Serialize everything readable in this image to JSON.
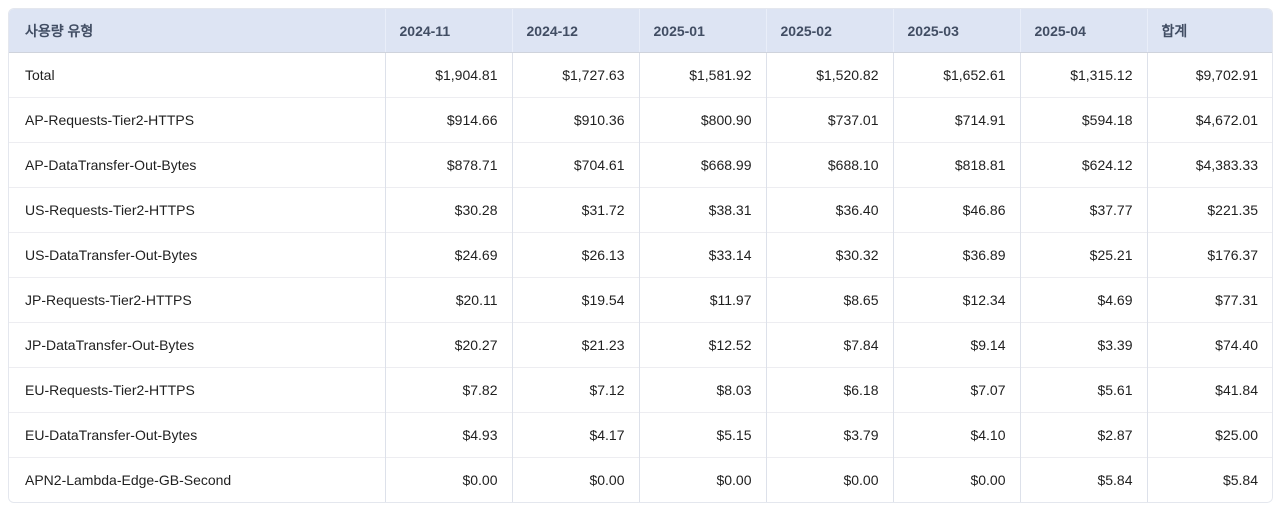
{
  "colors": {
    "header_bg": "#dde4f3",
    "header_text": "#414d63",
    "body_text": "#1f1f1f",
    "row_divider": "#ededf1",
    "column_divider": "#dde1ea",
    "outer_border": "#e4e7ee"
  },
  "table": {
    "columns": [
      "사용량 유형",
      "2024-11",
      "2024-12",
      "2025-01",
      "2025-02",
      "2025-03",
      "2025-04",
      "합계"
    ],
    "rows": [
      {
        "label": "Total",
        "values": [
          "$1,904.81",
          "$1,727.63",
          "$1,581.92",
          "$1,520.82",
          "$1,652.61",
          "$1,315.12",
          "$9,702.91"
        ]
      },
      {
        "label": "AP-Requests-Tier2-HTTPS",
        "values": [
          "$914.66",
          "$910.36",
          "$800.90",
          "$737.01",
          "$714.91",
          "$594.18",
          "$4,672.01"
        ]
      },
      {
        "label": "AP-DataTransfer-Out-Bytes",
        "values": [
          "$878.71",
          "$704.61",
          "$668.99",
          "$688.10",
          "$818.81",
          "$624.12",
          "$4,383.33"
        ]
      },
      {
        "label": "US-Requests-Tier2-HTTPS",
        "values": [
          "$30.28",
          "$31.72",
          "$38.31",
          "$36.40",
          "$46.86",
          "$37.77",
          "$221.35"
        ]
      },
      {
        "label": "US-DataTransfer-Out-Bytes",
        "values": [
          "$24.69",
          "$26.13",
          "$33.14",
          "$30.32",
          "$36.89",
          "$25.21",
          "$176.37"
        ]
      },
      {
        "label": "JP-Requests-Tier2-HTTPS",
        "values": [
          "$20.11",
          "$19.54",
          "$11.97",
          "$8.65",
          "$12.34",
          "$4.69",
          "$77.31"
        ]
      },
      {
        "label": "JP-DataTransfer-Out-Bytes",
        "values": [
          "$20.27",
          "$21.23",
          "$12.52",
          "$7.84",
          "$9.14",
          "$3.39",
          "$74.40"
        ]
      },
      {
        "label": "EU-Requests-Tier2-HTTPS",
        "values": [
          "$7.82",
          "$7.12",
          "$8.03",
          "$6.18",
          "$7.07",
          "$5.61",
          "$41.84"
        ]
      },
      {
        "label": "EU-DataTransfer-Out-Bytes",
        "values": [
          "$4.93",
          "$4.17",
          "$5.15",
          "$3.79",
          "$4.10",
          "$2.87",
          "$25.00"
        ]
      },
      {
        "label": "APN2-Lambda-Edge-GB-Second",
        "values": [
          "$0.00",
          "$0.00",
          "$0.00",
          "$0.00",
          "$0.00",
          "$5.84",
          "$5.84"
        ]
      }
    ]
  }
}
